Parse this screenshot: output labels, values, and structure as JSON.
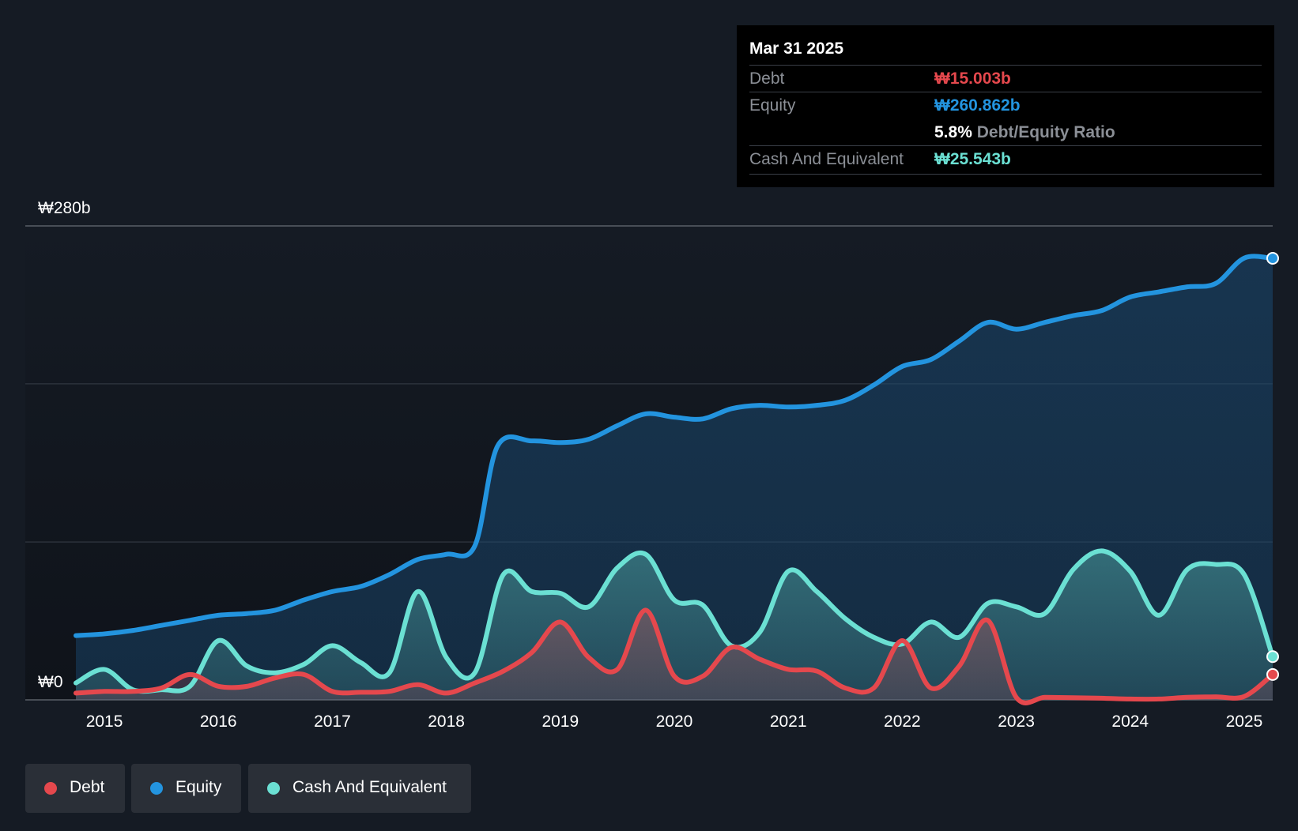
{
  "tooltip": {
    "date": "Mar 31 2025",
    "debt_label": "Debt",
    "debt_value": "₩15.003b",
    "equity_label": "Equity",
    "equity_value": "₩260.862b",
    "ratio_value": "5.8%",
    "ratio_label": "Debt/Equity Ratio",
    "cash_label": "Cash And Equivalent",
    "cash_value": "₩25.543b"
  },
  "legend": [
    {
      "label": "Debt",
      "color": "#e5484d"
    },
    {
      "label": "Equity",
      "color": "#2394df"
    },
    {
      "label": "Cash And Equivalent",
      "color": "#6be0d3"
    }
  ],
  "colors": {
    "debt": "#e5484d",
    "equity": "#2394df",
    "cash": "#6be0d3",
    "background": "#151b24"
  },
  "chart_data": {
    "type": "area",
    "x_range": [
      2014.75,
      2025.25
    ],
    "ylim": [
      0,
      280
    ],
    "y_tick_labels": [
      {
        "value": 280,
        "label": "₩280b"
      },
      {
        "value": 0,
        "label": "₩0"
      }
    ],
    "gridlines": [
      0,
      93.3,
      186.7,
      280
    ],
    "x_tick_labels": [
      "2015",
      "2016",
      "2017",
      "2018",
      "2019",
      "2020",
      "2021",
      "2022",
      "2023",
      "2024",
      "2025"
    ],
    "x_tick_values": [
      2015,
      2016,
      2017,
      2018,
      2019,
      2020,
      2021,
      2022,
      2023,
      2024,
      2025
    ],
    "series": [
      {
        "name": "Equity",
        "points": [
          [
            2014.75,
            38
          ],
          [
            2015.0,
            39
          ],
          [
            2015.25,
            41
          ],
          [
            2015.5,
            44
          ],
          [
            2015.75,
            47
          ],
          [
            2016.0,
            50
          ],
          [
            2016.25,
            51
          ],
          [
            2016.5,
            53
          ],
          [
            2016.75,
            59
          ],
          [
            2017.0,
            64
          ],
          [
            2017.25,
            67
          ],
          [
            2017.5,
            74
          ],
          [
            2017.75,
            83
          ],
          [
            2018.0,
            86
          ],
          [
            2018.25,
            91
          ],
          [
            2018.45,
            150
          ],
          [
            2018.75,
            153
          ],
          [
            2019.0,
            152
          ],
          [
            2019.25,
            154
          ],
          [
            2019.5,
            162
          ],
          [
            2019.75,
            169
          ],
          [
            2020.0,
            167
          ],
          [
            2020.25,
            166
          ],
          [
            2020.5,
            172
          ],
          [
            2020.75,
            174
          ],
          [
            2021.0,
            173
          ],
          [
            2021.25,
            174
          ],
          [
            2021.5,
            177
          ],
          [
            2021.75,
            186
          ],
          [
            2022.0,
            197
          ],
          [
            2022.25,
            201
          ],
          [
            2022.5,
            212
          ],
          [
            2022.75,
            223
          ],
          [
            2023.0,
            219
          ],
          [
            2023.25,
            223
          ],
          [
            2023.5,
            227
          ],
          [
            2023.75,
            230
          ],
          [
            2024.0,
            238
          ],
          [
            2024.25,
            241
          ],
          [
            2024.5,
            244
          ],
          [
            2024.75,
            246
          ],
          [
            2025.0,
            261
          ],
          [
            2025.25,
            260.862
          ]
        ]
      },
      {
        "name": "Cash And Equivalent",
        "points": [
          [
            2014.75,
            10
          ],
          [
            2015.0,
            18
          ],
          [
            2015.25,
            6
          ],
          [
            2015.5,
            6
          ],
          [
            2015.75,
            8
          ],
          [
            2016.0,
            35
          ],
          [
            2016.25,
            20
          ],
          [
            2016.5,
            16
          ],
          [
            2016.75,
            21
          ],
          [
            2017.0,
            32
          ],
          [
            2017.25,
            22
          ],
          [
            2017.5,
            16
          ],
          [
            2017.75,
            64
          ],
          [
            2018.0,
            25
          ],
          [
            2018.25,
            16
          ],
          [
            2018.5,
            74
          ],
          [
            2018.75,
            64
          ],
          [
            2019.0,
            63
          ],
          [
            2019.25,
            55
          ],
          [
            2019.5,
            78
          ],
          [
            2019.75,
            86
          ],
          [
            2020.0,
            59
          ],
          [
            2020.25,
            56
          ],
          [
            2020.5,
            32
          ],
          [
            2020.75,
            40
          ],
          [
            2021.0,
            76
          ],
          [
            2021.25,
            64
          ],
          [
            2021.5,
            48
          ],
          [
            2021.75,
            37
          ],
          [
            2022.0,
            33
          ],
          [
            2022.25,
            46
          ],
          [
            2022.5,
            37
          ],
          [
            2022.75,
            57
          ],
          [
            2023.0,
            55
          ],
          [
            2023.25,
            51
          ],
          [
            2023.5,
            77
          ],
          [
            2023.75,
            88
          ],
          [
            2024.0,
            76
          ],
          [
            2024.25,
            50
          ],
          [
            2024.5,
            77
          ],
          [
            2024.75,
            80
          ],
          [
            2025.0,
            74
          ],
          [
            2025.25,
            25.543
          ]
        ]
      },
      {
        "name": "Debt",
        "points": [
          [
            2014.75,
            4
          ],
          [
            2015.0,
            5
          ],
          [
            2015.25,
            5
          ],
          [
            2015.5,
            7
          ],
          [
            2015.75,
            15
          ],
          [
            2016.0,
            8
          ],
          [
            2016.25,
            8
          ],
          [
            2016.5,
            13
          ],
          [
            2016.75,
            15
          ],
          [
            2017.0,
            5
          ],
          [
            2017.25,
            4.5
          ],
          [
            2017.5,
            5
          ],
          [
            2017.75,
            9
          ],
          [
            2018.0,
            4
          ],
          [
            2018.25,
            10
          ],
          [
            2018.5,
            17
          ],
          [
            2018.75,
            28
          ],
          [
            2019.0,
            46
          ],
          [
            2019.25,
            25
          ],
          [
            2019.5,
            18
          ],
          [
            2019.75,
            53
          ],
          [
            2020.0,
            14
          ],
          [
            2020.25,
            14
          ],
          [
            2020.5,
            31
          ],
          [
            2020.75,
            24
          ],
          [
            2021.0,
            18
          ],
          [
            2021.25,
            17
          ],
          [
            2021.5,
            7
          ],
          [
            2021.75,
            7
          ],
          [
            2022.0,
            35
          ],
          [
            2022.25,
            7
          ],
          [
            2022.5,
            20
          ],
          [
            2022.75,
            47
          ],
          [
            2023.0,
            1.5
          ],
          [
            2023.25,
            1.5
          ],
          [
            2023.5,
            1.3
          ],
          [
            2023.75,
            1
          ],
          [
            2024.0,
            0.5
          ],
          [
            2024.25,
            0.5
          ],
          [
            2024.5,
            1.5
          ],
          [
            2024.75,
            1.8
          ],
          [
            2025.0,
            2
          ],
          [
            2025.25,
            15.003
          ]
        ]
      }
    ]
  }
}
